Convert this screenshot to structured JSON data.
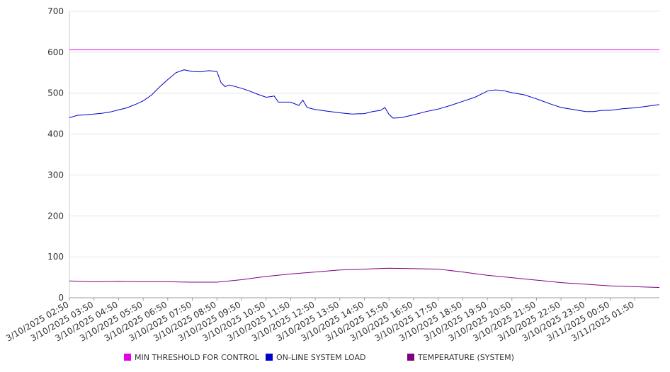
{
  "chart_data": {
    "type": "line",
    "title": "",
    "xlabel": "",
    "ylabel": "",
    "ylim": [
      0,
      700
    ],
    "yticks": [
      0,
      100,
      200,
      300,
      400,
      500,
      600,
      700
    ],
    "xlim": [
      "3/10/2025 02:50",
      "3/11/2025 02:50"
    ],
    "x_tick_labels": [
      "3/10/2025 02:50",
      "3/10/2025 03:50",
      "3/10/2025 04:50",
      "3/10/2025 05:50",
      "3/10/2025 06:50",
      "3/10/2025 07:50",
      "3/10/2025 08:50",
      "3/10/2025 09:50",
      "3/10/2025 10:50",
      "3/10/2025 11:50",
      "3/10/2025 12:50",
      "3/10/2025 13:50",
      "3/10/2025 14:50",
      "3/10/2025 15:50",
      "3/10/2025 16:50",
      "3/10/2025 17:50",
      "3/10/2025 18:50",
      "3/10/2025 19:50",
      "3/10/2025 20:50",
      "3/10/2025 21:50",
      "3/10/2025 22:50",
      "3/10/2025 23:50",
      "3/11/2025 00:50",
      "3/11/2025 01:50"
    ],
    "grid": true,
    "legend_position": "bottom",
    "series": [
      {
        "name": "MIN THRESHOLD FOR CONTROL",
        "color": "#e600e6",
        "points": [
          [
            "3/10/2025 02:50",
            606
          ],
          [
            "3/11/2025 02:50",
            606
          ]
        ]
      },
      {
        "name": "ON-LINE SYSTEM LOAD",
        "color": "#0000cc",
        "points": [
          [
            "3/10/2025 02:50",
            440
          ],
          [
            "3/10/2025 03:10",
            446
          ],
          [
            "3/10/2025 03:30",
            447
          ],
          [
            "3/10/2025 03:50",
            449
          ],
          [
            "3/10/2025 04:10",
            451
          ],
          [
            "3/10/2025 04:30",
            454
          ],
          [
            "3/10/2025 04:50",
            459
          ],
          [
            "3/10/2025 05:10",
            464
          ],
          [
            "3/10/2025 05:30",
            472
          ],
          [
            "3/10/2025 05:50",
            481
          ],
          [
            "3/10/2025 06:10",
            495
          ],
          [
            "3/10/2025 06:30",
            515
          ],
          [
            "3/10/2025 06:50",
            533
          ],
          [
            "3/10/2025 07:10",
            550
          ],
          [
            "3/10/2025 07:30",
            557
          ],
          [
            "3/10/2025 07:50",
            553
          ],
          [
            "3/10/2025 08:10",
            552
          ],
          [
            "3/10/2025 08:30",
            555
          ],
          [
            "3/10/2025 08:50",
            553
          ],
          [
            "3/10/2025 09:00",
            526
          ],
          [
            "3/10/2025 09:10",
            516
          ],
          [
            "3/10/2025 09:20",
            520
          ],
          [
            "3/10/2025 09:50",
            512
          ],
          [
            "3/10/2025 10:10",
            505
          ],
          [
            "3/10/2025 10:30",
            497
          ],
          [
            "3/10/2025 10:50",
            490
          ],
          [
            "3/10/2025 11:10",
            493
          ],
          [
            "3/10/2025 11:20",
            478
          ],
          [
            "3/10/2025 11:50",
            478
          ],
          [
            "3/10/2025 12:10",
            470
          ],
          [
            "3/10/2025 12:20",
            483
          ],
          [
            "3/10/2025 12:30",
            465
          ],
          [
            "3/10/2025 12:50",
            460
          ],
          [
            "3/10/2025 13:20",
            456
          ],
          [
            "3/10/2025 13:50",
            452
          ],
          [
            "3/10/2025 14:20",
            449
          ],
          [
            "3/10/2025 14:50",
            450
          ],
          [
            "3/10/2025 15:10",
            455
          ],
          [
            "3/10/2025 15:30",
            458
          ],
          [
            "3/10/2025 15:40",
            465
          ],
          [
            "3/10/2025 15:50",
            448
          ],
          [
            "3/10/2025 16:00",
            439
          ],
          [
            "3/10/2025 16:20",
            440
          ],
          [
            "3/10/2025 16:50",
            447
          ],
          [
            "3/10/2025 17:20",
            455
          ],
          [
            "3/10/2025 17:50",
            461
          ],
          [
            "3/10/2025 18:20",
            470
          ],
          [
            "3/10/2025 18:50",
            480
          ],
          [
            "3/10/2025 19:20",
            490
          ],
          [
            "3/10/2025 19:50",
            505
          ],
          [
            "3/10/2025 20:10",
            508
          ],
          [
            "3/10/2025 20:30",
            506
          ],
          [
            "3/10/2025 20:50",
            501
          ],
          [
            "3/10/2025 21:20",
            496
          ],
          [
            "3/10/2025 21:50",
            486
          ],
          [
            "3/10/2025 22:20",
            475
          ],
          [
            "3/10/2025 22:50",
            465
          ],
          [
            "3/10/2025 23:20",
            460
          ],
          [
            "3/10/2025 23:50",
            455
          ],
          [
            "3/11/2025 00:10",
            455
          ],
          [
            "3/11/2025 00:30",
            458
          ],
          [
            "3/11/2025 00:50",
            458
          ],
          [
            "3/11/2025 01:20",
            462
          ],
          [
            "3/11/2025 01:50",
            464
          ],
          [
            "3/11/2025 02:20",
            468
          ],
          [
            "3/11/2025 02:50",
            472
          ]
        ]
      },
      {
        "name": "TEMPERATURE (SYSTEM)",
        "color": "#800080",
        "points": [
          [
            "3/10/2025 02:50",
            41
          ],
          [
            "3/10/2025 03:50",
            39
          ],
          [
            "3/10/2025 04:50",
            40
          ],
          [
            "3/10/2025 05:50",
            39
          ],
          [
            "3/10/2025 06:50",
            39
          ],
          [
            "3/10/2025 07:50",
            38
          ],
          [
            "3/10/2025 08:50",
            38
          ],
          [
            "3/10/2025 09:50",
            44
          ],
          [
            "3/10/2025 10:50",
            52
          ],
          [
            "3/10/2025 11:50",
            58
          ],
          [
            "3/10/2025 12:50",
            63
          ],
          [
            "3/10/2025 13:50",
            68
          ],
          [
            "3/10/2025 14:50",
            70
          ],
          [
            "3/10/2025 15:50",
            72
          ],
          [
            "3/10/2025 16:50",
            71
          ],
          [
            "3/10/2025 17:50",
            70
          ],
          [
            "3/10/2025 18:50",
            63
          ],
          [
            "3/10/2025 19:50",
            55
          ],
          [
            "3/10/2025 20:50",
            49
          ],
          [
            "3/10/2025 21:50",
            43
          ],
          [
            "3/10/2025 22:50",
            37
          ],
          [
            "3/10/2025 23:50",
            33
          ],
          [
            "3/11/2025 00:50",
            29
          ],
          [
            "3/11/2025 01:50",
            27
          ],
          [
            "3/11/2025 02:50",
            25
          ]
        ]
      }
    ]
  }
}
